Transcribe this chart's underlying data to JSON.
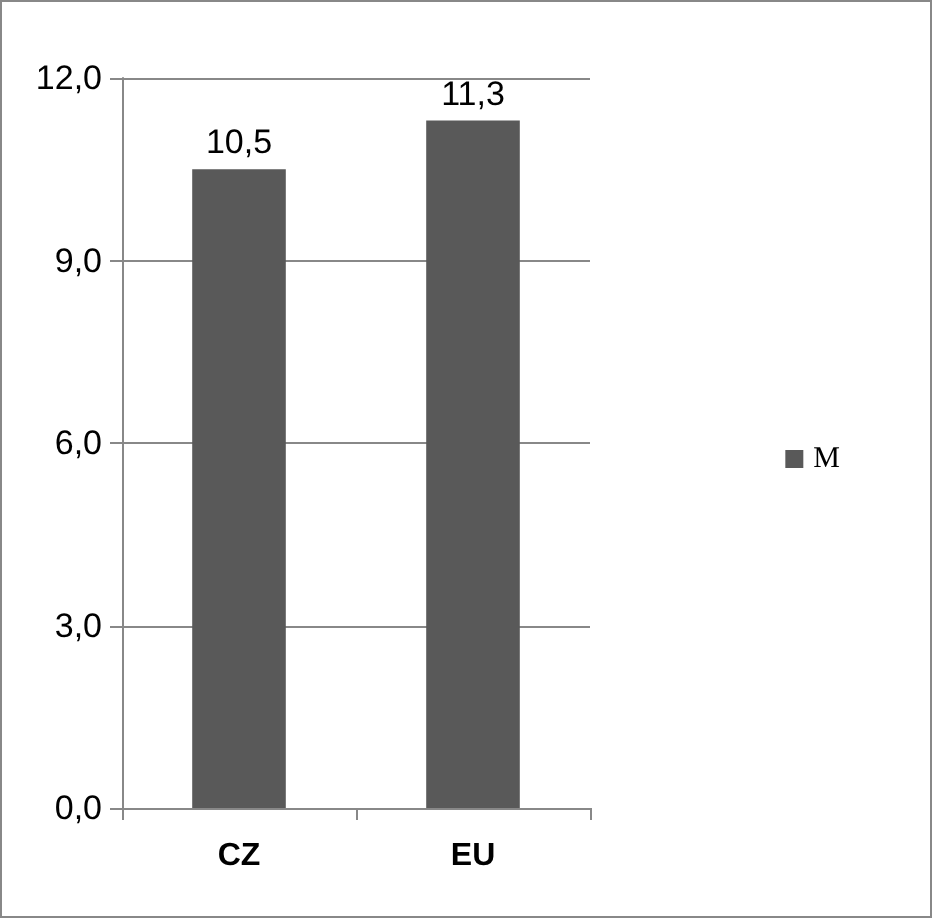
{
  "chart_data": {
    "type": "bar",
    "categories": [
      "CZ",
      "EU"
    ],
    "series": [
      {
        "name": "M",
        "color": "#595959",
        "values": [
          10.5,
          11.3
        ],
        "value_labels": [
          "10,5",
          "11,3"
        ]
      }
    ],
    "ylim": [
      0,
      12
    ],
    "yticks": [
      {
        "value": 0,
        "label": "0,0"
      },
      {
        "value": 3,
        "label": "3,0"
      },
      {
        "value": 6,
        "label": "6,0"
      },
      {
        "value": 9,
        "label": "9,0"
      },
      {
        "value": 12,
        "label": "12,0"
      }
    ],
    "grid": "y",
    "legend": "right"
  }
}
